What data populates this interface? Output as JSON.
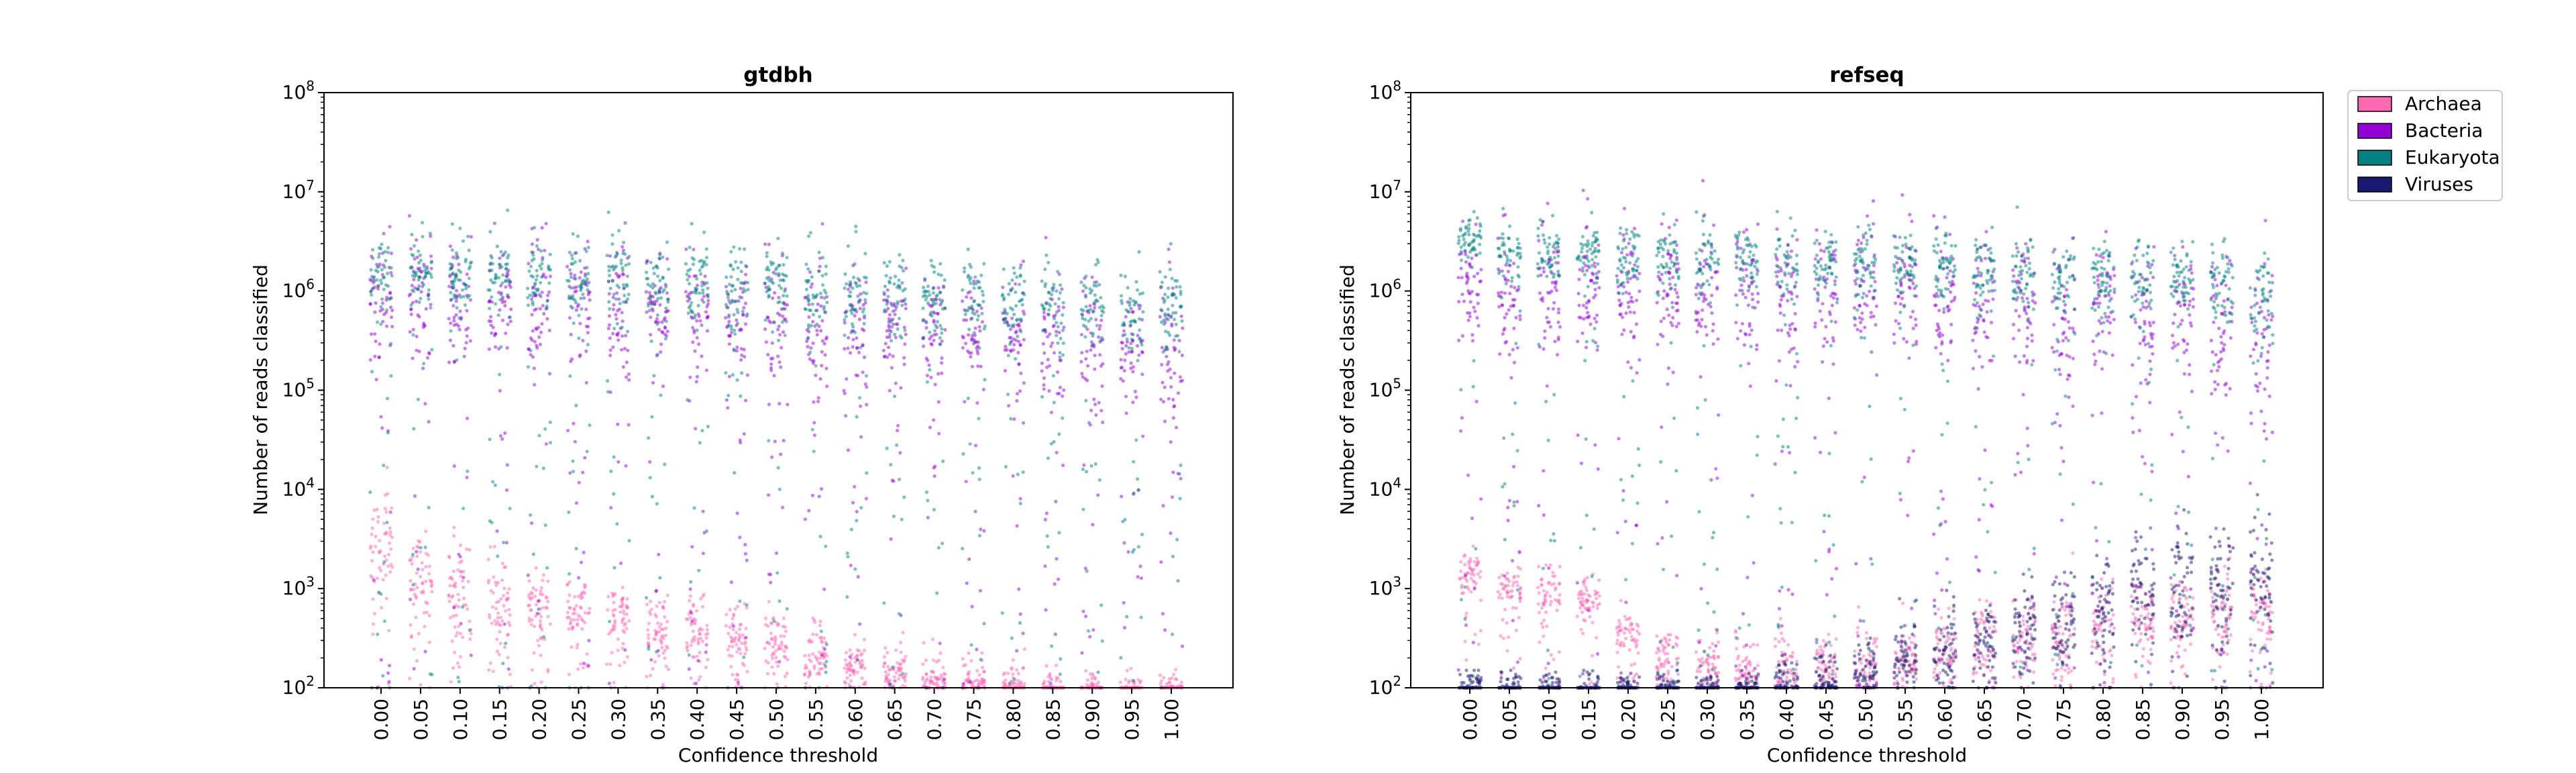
{
  "colors": {
    "Archaea": "#ff69b4",
    "Bacteria": "#9400d3",
    "Eukaryota": "#008080",
    "Viruses": "#191970"
  },
  "legend": {
    "placement": "outside-right",
    "entries": [
      "Archaea",
      "Bacteria",
      "Eukaryota",
      "Viruses"
    ]
  },
  "chart_data": [
    {
      "type": "scatter",
      "style": "strip plot (jittered points per threshold)",
      "title": "gtdbh",
      "xlabel": "Confidence threshold",
      "ylabel": "Number of reads classified",
      "yscale": "log",
      "ylim": [
        100,
        100000000
      ],
      "yticks": [
        "10^2",
        "10^3",
        "10^4",
        "10^5",
        "10^6",
        "10^7",
        "10^8"
      ],
      "categories": [
        "0.00",
        "0.05",
        "0.10",
        "0.15",
        "0.20",
        "0.25",
        "0.30",
        "0.35",
        "0.40",
        "0.45",
        "0.50",
        "0.55",
        "0.60",
        "0.65",
        "0.70",
        "0.75",
        "0.80",
        "0.85",
        "0.90",
        "0.95",
        "1.00"
      ],
      "series": [
        {
          "name": "Archaea",
          "median": [
            3000,
            1500,
            1000,
            800,
            700,
            600,
            500,
            450,
            400,
            330,
            280,
            220,
            170,
            150,
            130,
            120,
            110,
            100,
            100,
            100,
            100
          ],
          "max": [
            60000,
            15000,
            11000,
            9000,
            3000,
            2500,
            2000,
            2000,
            1500,
            1500,
            1200,
            900,
            600,
            500,
            500,
            400,
            300,
            250,
            200,
            200,
            200
          ]
        },
        {
          "name": "Bacteria",
          "median": [
            900000,
            900000,
            850000,
            800000,
            750000,
            700000,
            650000,
            620000,
            600000,
            550000,
            500000,
            480000,
            450000,
            420000,
            380000,
            350000,
            320000,
            300000,
            280000,
            260000,
            240000
          ],
          "max": [
            20000000,
            20000000,
            20000000,
            17000000,
            16000000,
            15000000,
            15000000,
            14000000,
            13000000,
            12000000,
            11000000,
            9000000,
            8000000,
            7000000,
            7000000,
            6500000,
            6000000,
            5500000,
            5500000,
            5000000,
            5000000
          ]
        },
        {
          "name": "Eukaryota",
          "median": [
            1500000,
            1500000,
            1500000,
            1400000,
            1400000,
            1300000,
            1300000,
            1200000,
            1200000,
            1100000,
            1100000,
            1000000,
            1000000,
            950000,
            900000,
            850000,
            800000,
            750000,
            700000,
            650000,
            600000
          ],
          "max": [
            10000000,
            10000000,
            10000000,
            10000000,
            10000000,
            10000000,
            9000000,
            9000000,
            9000000,
            8000000,
            8000000,
            8000000,
            7000000,
            7000000,
            7000000,
            6000000,
            6000000,
            6000000,
            6000000,
            6000000,
            6000000
          ]
        }
      ]
    },
    {
      "type": "scatter",
      "style": "strip plot (jittered points per threshold)",
      "title": "refseq",
      "xlabel": "Confidence threshold",
      "ylabel": "Number of reads classified",
      "yscale": "log",
      "ylim": [
        100,
        100000000
      ],
      "yticks": [
        "10^2",
        "10^3",
        "10^4",
        "10^5",
        "10^6",
        "10^7",
        "10^8"
      ],
      "categories": [
        "0.00",
        "0.05",
        "0.10",
        "0.15",
        "0.20",
        "0.25",
        "0.30",
        "0.35",
        "0.40",
        "0.45",
        "0.50",
        "0.55",
        "0.60",
        "0.65",
        "0.70",
        "0.75",
        "0.80",
        "0.85",
        "0.90",
        "0.95",
        "1.00"
      ],
      "series": [
        {
          "name": "Archaea",
          "median": [
            1500,
            1100,
            900,
            800,
            350,
            200,
            180,
            160,
            150,
            160,
            180,
            220,
            260,
            300,
            350,
            400,
            450,
            500,
            550,
            600,
            650
          ],
          "max": [
            4000,
            3000,
            3000,
            2500,
            1000,
            700,
            700,
            700,
            800,
            900,
            1000,
            1200,
            1500,
            1800,
            2200,
            2500,
            3000,
            3500,
            4000,
            4000,
            4000
          ]
        },
        {
          "name": "Bacteria",
          "median": [
            1000000,
            1000000,
            1000000,
            1000000,
            1000000,
            1000000,
            1000000,
            1000000,
            1000000,
            1000000,
            950000,
            950000,
            900000,
            850000,
            800000,
            750000,
            700000,
            600000,
            500000,
            400000,
            300000
          ],
          "max": [
            20000000,
            20000000,
            20000000,
            20000000,
            20000000,
            22000000,
            22000000,
            22000000,
            22000000,
            22000000,
            22000000,
            22000000,
            22000000,
            22000000,
            22000000,
            22000000,
            22000000,
            20000000,
            20000000,
            18000000,
            16000000
          ]
        },
        {
          "name": "Eukaryota",
          "median": [
            3000000,
            2500000,
            2500000,
            2500000,
            2000000,
            2000000,
            2000000,
            2000000,
            2000000,
            2000000,
            1800000,
            1800000,
            1700000,
            1600000,
            1500000,
            1500000,
            1400000,
            1300000,
            1200000,
            1100000,
            1000000
          ],
          "max": [
            10000000,
            10000000,
            10000000,
            10000000,
            10000000,
            10000000,
            10000000,
            10000000,
            10000000,
            10000000,
            10000000,
            10000000,
            10000000,
            10000000,
            10000000,
            10000000,
            10000000,
            10000000,
            10000000,
            10000000,
            10000000
          ]
        },
        {
          "name": "Viruses",
          "median": [
            100,
            100,
            100,
            100,
            100,
            100,
            100,
            100,
            110,
            120,
            150,
            200,
            250,
            300,
            400,
            500,
            600,
            800,
            1000,
            1200,
            1500
          ],
          "max": [
            150,
            150,
            150,
            150,
            200,
            200,
            250,
            300,
            400,
            500,
            700,
            1000,
            1500,
            2000,
            3000,
            5000,
            7000,
            10000,
            15000,
            20000,
            25000
          ]
        }
      ]
    }
  ]
}
